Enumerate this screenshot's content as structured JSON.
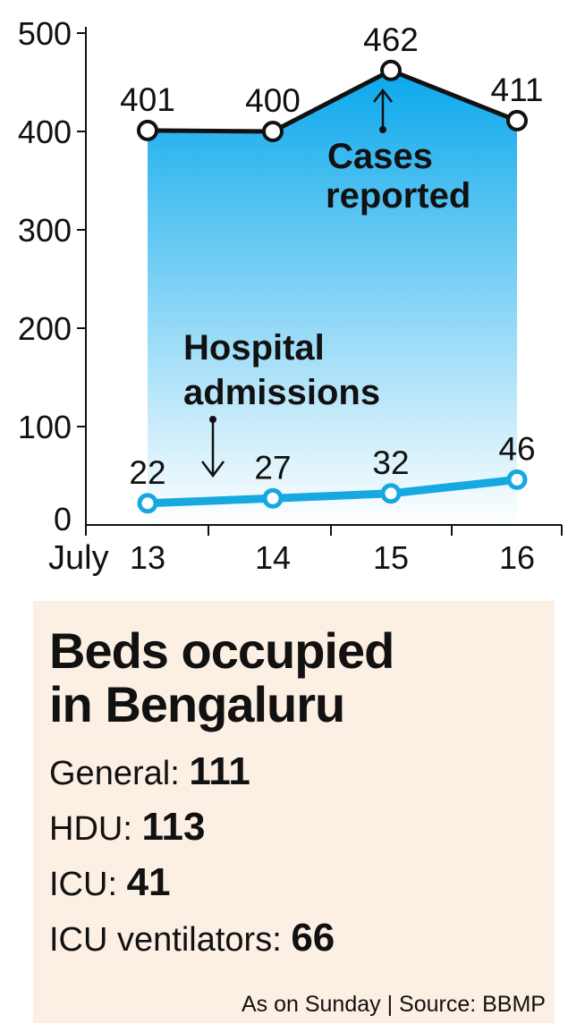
{
  "chart_data": {
    "type": "area",
    "x": [
      "13",
      "14",
      "15",
      "16"
    ],
    "xlabel": "July",
    "ylim": [
      0,
      500
    ],
    "yticks": [
      0,
      100,
      200,
      300,
      400,
      500
    ],
    "series": [
      {
        "name": "Cases reported",
        "values": [
          401,
          400,
          462,
          411
        ],
        "color": "#13aee8"
      },
      {
        "name": "Hospital admissions",
        "values": [
          22,
          27,
          32,
          46
        ],
        "color": "#16a8e0"
      }
    ],
    "annotations": [
      {
        "lines": [
          "Cases",
          "reported"
        ],
        "series": "Cases reported"
      },
      {
        "lines": [
          "Hospital",
          "admissions"
        ],
        "series": "Hospital admissions"
      }
    ],
    "colors": {
      "area_top": "#0aa8ec",
      "area_bottom": "#ffffff",
      "line_cases": "#111111",
      "line_admissions": "#16a8e0"
    }
  },
  "beds": {
    "title_line1": "Beds occupied",
    "title_line2": "in Bengaluru",
    "items": [
      {
        "label": "General: ",
        "value": "111"
      },
      {
        "label": "HDU: ",
        "value": "113"
      },
      {
        "label": "ICU: ",
        "value": "41"
      },
      {
        "label": "ICU ventilators: ",
        "value": "66"
      }
    ],
    "footer": "As on Sunday | Source: BBMP",
    "background": "#fcefe4"
  }
}
